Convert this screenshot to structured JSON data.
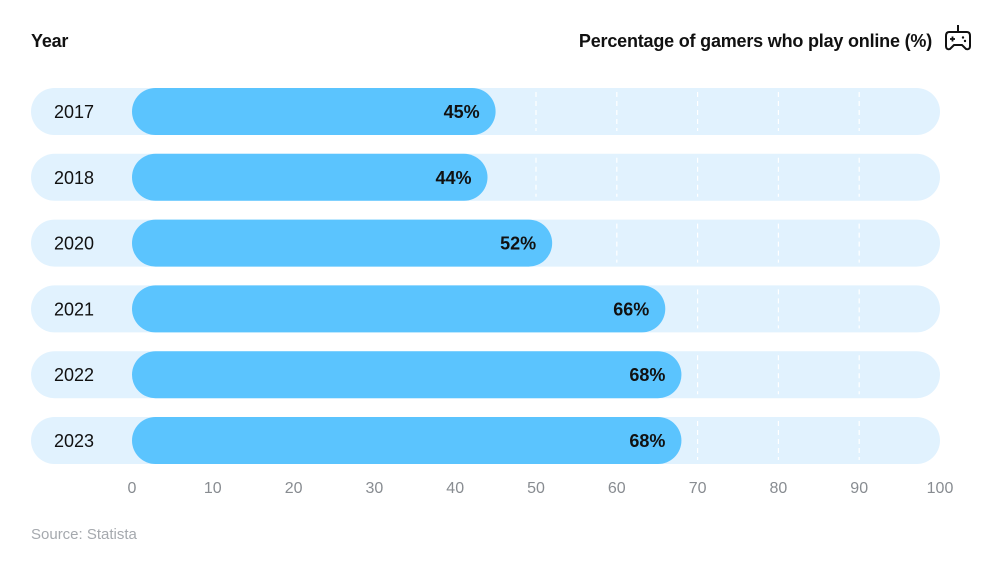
{
  "chart_data": {
    "type": "bar",
    "orientation": "horizontal",
    "ylabel": "Year",
    "xlabel": "Percentage of gamers who play online (%)",
    "categories": [
      "2017",
      "2018",
      "2020",
      "2021",
      "2022",
      "2023"
    ],
    "values": [
      45,
      44,
      52,
      66,
      68,
      68
    ],
    "data_labels": [
      "45%",
      "44%",
      "52%",
      "66%",
      "68%",
      "68%"
    ],
    "xlim": [
      0,
      100
    ],
    "xticks": [
      "0",
      "10",
      "20",
      "30",
      "40",
      "50",
      "60",
      "70",
      "80",
      "90",
      "100"
    ],
    "grid": "dashed vertical lines",
    "colors": {
      "bar": "#5bc4fe",
      "track": "#e1f2fe",
      "grid": "#ffffff",
      "tick": "#888c91"
    }
  },
  "icon": "gamepad-icon",
  "source": "Source: Statista"
}
